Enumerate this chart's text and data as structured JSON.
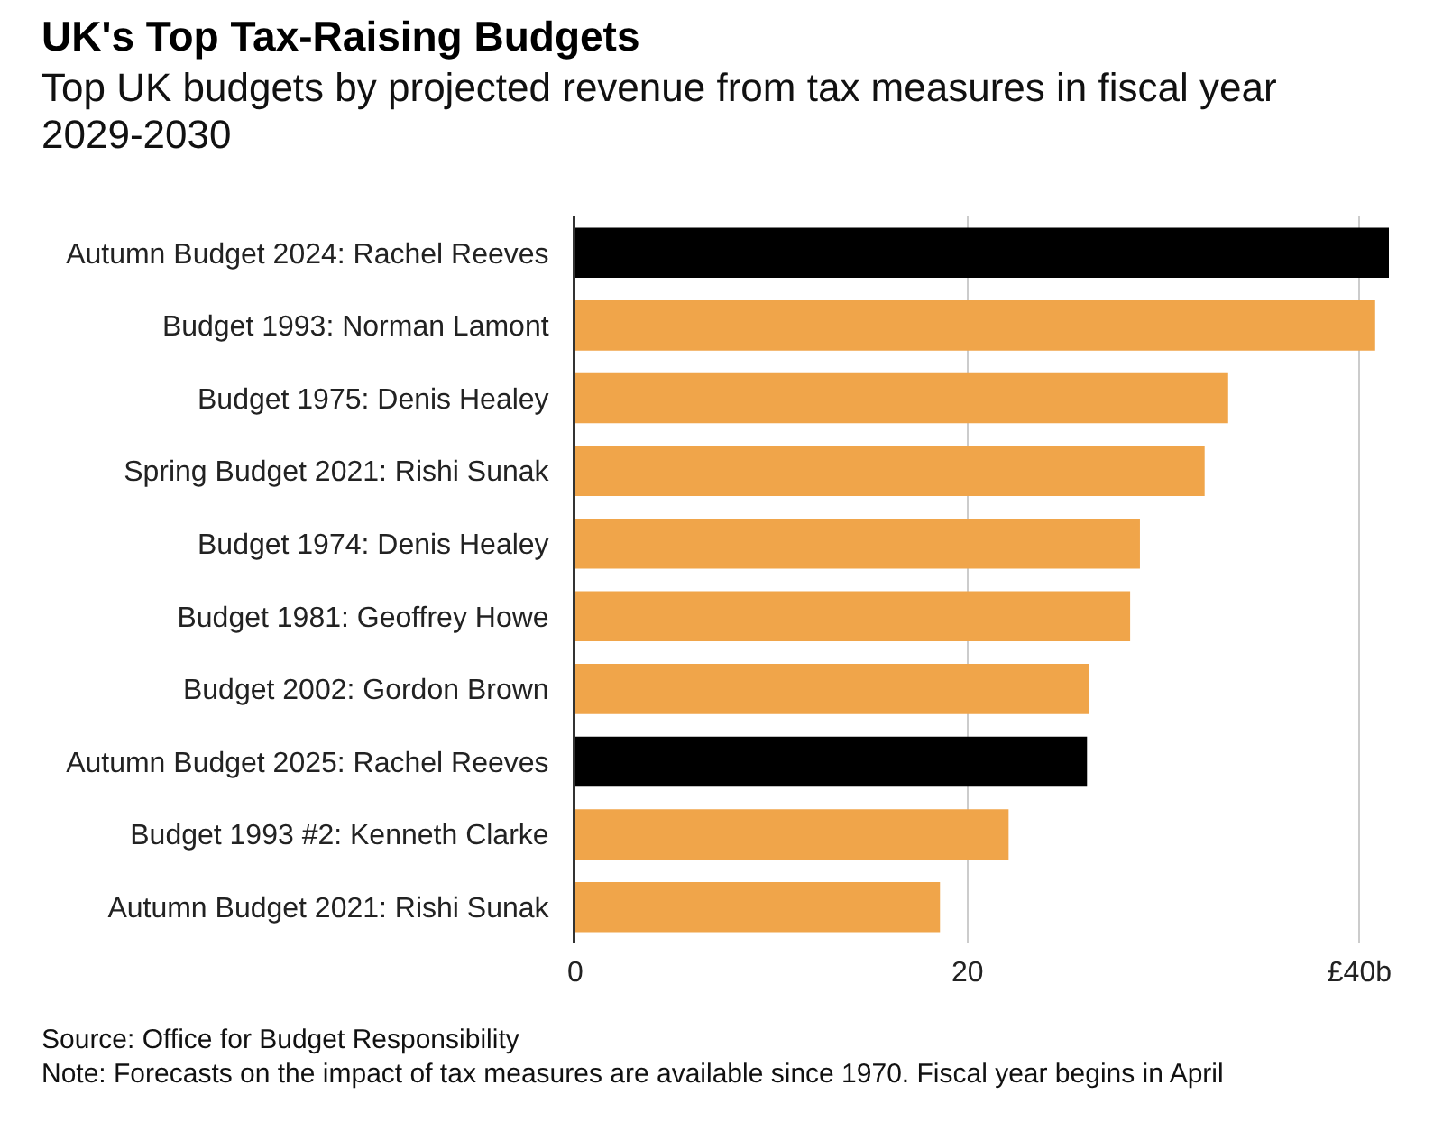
{
  "chart_data": {
    "type": "bar",
    "orientation": "horizontal",
    "title": "UK's Top Tax-Raising Budgets",
    "subtitle": "Top UK budgets by projected revenue from tax measures in fiscal year 2029-2030",
    "categories": [
      "Autumn Budget 2024: Rachel Reeves",
      "Budget 1993: Norman Lamont",
      "Budget 1975: Denis Healey",
      "Spring Budget 2021: Rishi Sunak",
      "Budget 1974: Denis Healey",
      "Budget 1981: Geoffrey Howe",
      "Budget 2002: Gordon Brown",
      "Autumn Budget 2025: Rachel Reeves",
      "Budget 1993 #2: Kenneth Clarke",
      "Autumn Budget 2021: Rishi Sunak"
    ],
    "values": [
      41.5,
      40.8,
      33.3,
      32.1,
      28.8,
      28.3,
      26.2,
      26.1,
      22.1,
      18.6
    ],
    "colors": [
      "#000000",
      "#f0a54a",
      "#f0a54a",
      "#f0a54a",
      "#f0a54a",
      "#f0a54a",
      "#f0a54a",
      "#000000",
      "#f0a54a",
      "#f0a54a"
    ],
    "xlim": [
      0,
      41.5
    ],
    "xticks": [
      0,
      20,
      {
        "value": 40,
        "label": "£40b"
      }
    ],
    "grid": "x",
    "annotations": [
      "Source: Office for Budget Responsibility",
      "Note: Forecasts on the impact of tax measures are available since 1970. Fiscal year begins in April"
    ]
  }
}
